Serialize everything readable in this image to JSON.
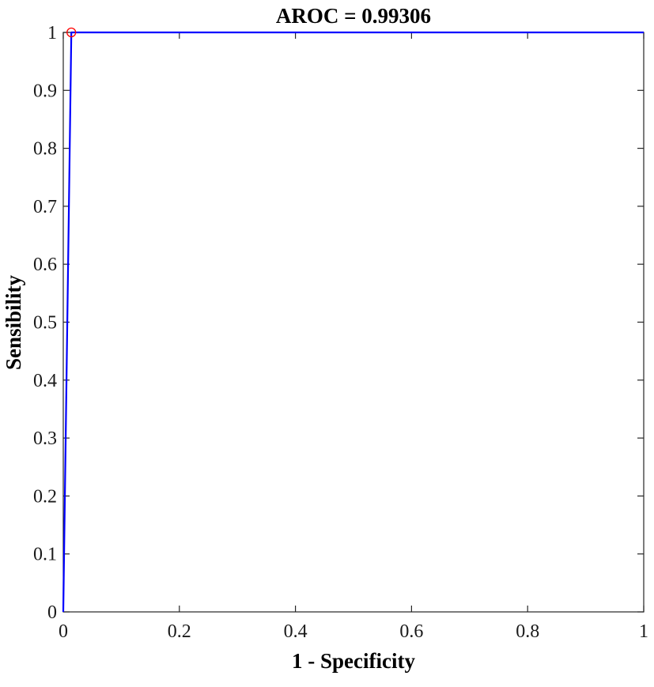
{
  "chart_data": {
    "type": "line",
    "title": "AROC = 0.99306",
    "xlabel": "1 - Specificity",
    "ylabel": "Sensibility",
    "xlim": [
      0,
      1
    ],
    "ylim": [
      0,
      1
    ],
    "xticks": [
      0,
      0.2,
      0.4,
      0.6,
      0.8,
      1
    ],
    "yticks": [
      0,
      0.1,
      0.2,
      0.3,
      0.4,
      0.5,
      0.6,
      0.7,
      0.8,
      0.9,
      1
    ],
    "xtick_labels": [
      "0",
      "0.2",
      "0.4",
      "0.6",
      "0.8",
      "1"
    ],
    "ytick_labels": [
      "0",
      "0.1",
      "0.2",
      "0.3",
      "0.4",
      "0.5",
      "0.6",
      "0.7",
      "0.8",
      "0.9",
      "1"
    ],
    "grid": false,
    "box": true,
    "series": [
      {
        "color": "#0000ff",
        "x": [
          0,
          0.0139,
          1
        ],
        "y": [
          0,
          1,
          1
        ]
      }
    ],
    "marker": {
      "x": 0.0139,
      "y": 1,
      "shape": "circle-open",
      "color": "#ff0000"
    }
  }
}
